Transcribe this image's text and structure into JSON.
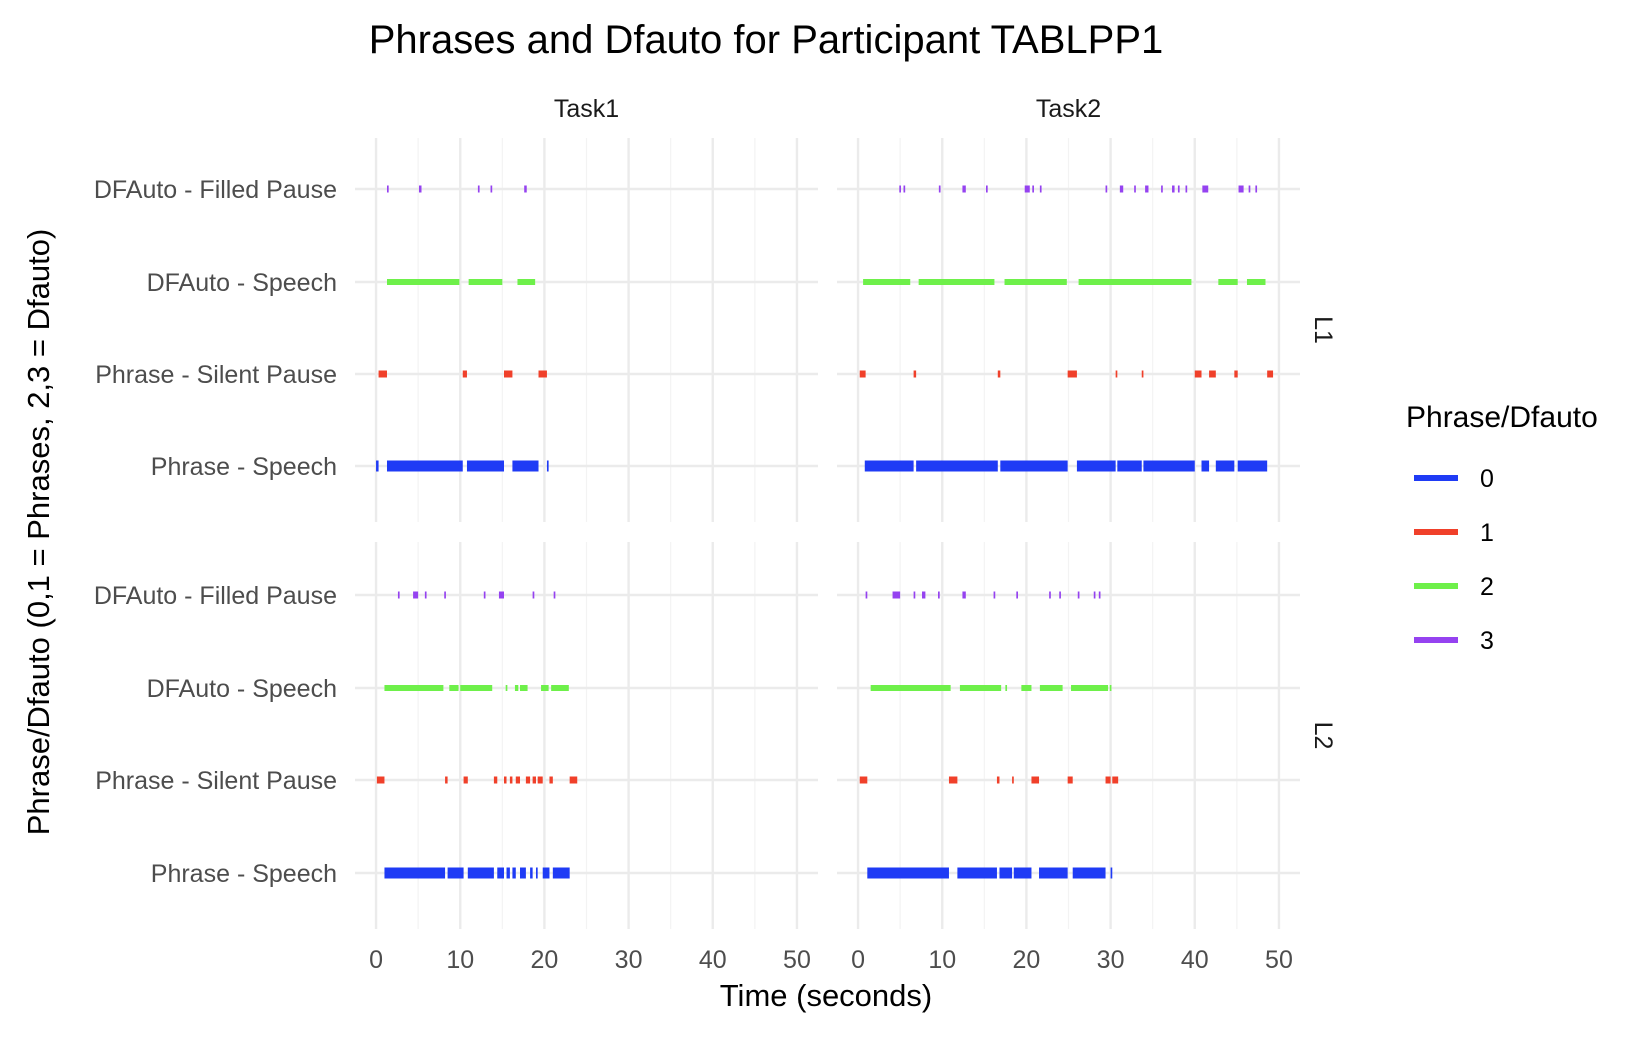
{
  "chart_data": {
    "type": "timeline-segments",
    "title": "Phrases and Dfauto for Participant TABLPP1",
    "xlabel": "Time (seconds)",
    "ylabel": "Phrase/Dfauto (0,1 = Phrases, 2,3 = Dfauto)",
    "xlim": [
      -2.5,
      52.5
    ],
    "x_ticks": [
      0,
      10,
      20,
      30,
      40,
      50
    ],
    "x_tick_labels": [
      "0",
      "10",
      "20",
      "30",
      "40",
      "50"
    ],
    "y_categories": [
      "Phrase - Speech",
      "Phrase - Silent Pause",
      "DFAuto - Speech",
      "DFAuto - Filled Pause"
    ],
    "facet_cols": [
      "Task1",
      "Task2"
    ],
    "facet_rows": [
      "L1",
      "L2"
    ],
    "grid": true,
    "legend": {
      "title": "Phrase/Dfauto",
      "position": "right",
      "entries": [
        {
          "label": "0",
          "color": "#1f3bf5"
        },
        {
          "label": "1",
          "color": "#f0402a"
        },
        {
          "label": "2",
          "color": "#6ef04a"
        },
        {
          "label": "3",
          "color": "#9542f0"
        }
      ]
    },
    "panels": [
      {
        "row": "L1",
        "col": "Task1",
        "segments": [
          {
            "category": "DFAuto - Filled Pause",
            "ranges": [
              [
                1.3,
                1.5
              ],
              [
                5.1,
                5.4
              ],
              [
                12.1,
                12.3
              ],
              [
                13.6,
                13.8
              ],
              [
                17.6,
                17.9
              ]
            ]
          },
          {
            "category": "DFAuto - Speech",
            "ranges": [
              [
                1.3,
                9.9
              ],
              [
                11.0,
                15.0
              ],
              [
                16.8,
                18.9
              ]
            ]
          },
          {
            "category": "Phrase - Silent Pause",
            "ranges": [
              [
                0.3,
                1.3
              ],
              [
                10.3,
                10.8
              ],
              [
                15.2,
                16.2
              ],
              [
                19.3,
                20.3
              ]
            ]
          },
          {
            "category": "Phrase - Speech",
            "ranges": [
              [
                0.0,
                0.3
              ],
              [
                1.3,
                10.3
              ],
              [
                10.8,
                15.2
              ],
              [
                16.2,
                19.3
              ],
              [
                20.3,
                20.5
              ]
            ]
          }
        ]
      },
      {
        "row": "L1",
        "col": "Task2",
        "segments": [
          {
            "category": "DFAuto - Filled Pause",
            "ranges": [
              [
                4.9,
                5.1
              ],
              [
                5.4,
                5.6
              ],
              [
                9.6,
                9.8
              ],
              [
                12.4,
                12.8
              ],
              [
                15.2,
                15.4
              ],
              [
                19.8,
                20.4
              ],
              [
                20.7,
                20.9
              ],
              [
                21.6,
                21.8
              ],
              [
                29.4,
                29.6
              ],
              [
                31.1,
                31.5
              ],
              [
                32.8,
                33.0
              ],
              [
                34.1,
                34.5
              ],
              [
                36.0,
                36.2
              ],
              [
                37.3,
                37.6
              ],
              [
                38.0,
                38.2
              ],
              [
                38.9,
                39.1
              ],
              [
                40.9,
                41.6
              ],
              [
                45.2,
                45.8
              ],
              [
                46.4,
                46.6
              ],
              [
                47.2,
                47.4
              ]
            ]
          },
          {
            "category": "DFAuto - Speech",
            "ranges": [
              [
                0.6,
                6.2
              ],
              [
                7.2,
                16.2
              ],
              [
                17.4,
                24.8
              ],
              [
                26.2,
                39.6
              ],
              [
                42.8,
                45.1
              ],
              [
                46.2,
                48.4
              ]
            ]
          },
          {
            "category": "Phrase - Silent Pause",
            "ranges": [
              [
                0.2,
                0.9
              ],
              [
                6.6,
                6.9
              ],
              [
                16.6,
                16.9
              ],
              [
                24.9,
                26.0
              ],
              [
                30.6,
                30.8
              ],
              [
                33.7,
                33.9
              ],
              [
                40.0,
                40.8
              ],
              [
                41.7,
                42.5
              ],
              [
                44.7,
                45.1
              ],
              [
                48.6,
                49.3
              ]
            ]
          },
          {
            "category": "Phrase - Speech",
            "ranges": [
              [
                0.8,
                6.6
              ],
              [
                6.9,
                16.6
              ],
              [
                16.9,
                24.9
              ],
              [
                26.0,
                30.6
              ],
              [
                30.8,
                33.7
              ],
              [
                33.9,
                40.0
              ],
              [
                40.8,
                41.7
              ],
              [
                42.5,
                44.7
              ],
              [
                45.1,
                48.6
              ]
            ]
          }
        ]
      },
      {
        "row": "L2",
        "col": "Task1",
        "segments": [
          {
            "category": "DFAuto - Filled Pause",
            "ranges": [
              [
                2.6,
                2.8
              ],
              [
                4.4,
                5.0
              ],
              [
                5.8,
                6.0
              ],
              [
                8.1,
                8.3
              ],
              [
                12.8,
                13.0
              ],
              [
                14.6,
                15.2
              ],
              [
                18.6,
                18.8
              ],
              [
                21.1,
                21.3
              ]
            ]
          },
          {
            "category": "DFAuto - Speech",
            "ranges": [
              [
                1.0,
                8.0
              ],
              [
                8.7,
                9.8
              ],
              [
                10.0,
                13.8
              ],
              [
                15.4,
                15.6
              ],
              [
                16.5,
                16.9
              ],
              [
                17.1,
                18.0
              ],
              [
                19.6,
                20.5
              ],
              [
                20.8,
                22.9
              ]
            ]
          },
          {
            "category": "Phrase - Silent Pause",
            "ranges": [
              [
                0.1,
                1.0
              ],
              [
                8.2,
                8.5
              ],
              [
                10.4,
                10.9
              ],
              [
                14.0,
                14.4
              ],
              [
                15.2,
                15.5
              ],
              [
                15.9,
                16.2
              ],
              [
                16.6,
                17.1
              ],
              [
                17.8,
                18.3
              ],
              [
                18.6,
                19.0
              ],
              [
                19.2,
                19.8
              ],
              [
                20.6,
                21.0
              ],
              [
                23.0,
                23.9
              ]
            ]
          },
          {
            "category": "Phrase - Speech",
            "ranges": [
              [
                1.0,
                8.2
              ],
              [
                8.5,
                10.4
              ],
              [
                10.9,
                14.0
              ],
              [
                14.4,
                15.2
              ],
              [
                15.5,
                15.9
              ],
              [
                16.2,
                16.6
              ],
              [
                17.1,
                17.8
              ],
              [
                18.3,
                18.6
              ],
              [
                19.0,
                19.2
              ],
              [
                19.8,
                20.6
              ],
              [
                21.0,
                23.0
              ]
            ]
          }
        ]
      },
      {
        "row": "L2",
        "col": "Task2",
        "segments": [
          {
            "category": "DFAuto - Filled Pause",
            "ranges": [
              [
                0.9,
                1.1
              ],
              [
                4.1,
                5.0
              ],
              [
                6.6,
                6.8
              ],
              [
                7.6,
                8.0
              ],
              [
                9.5,
                9.7
              ],
              [
                12.4,
                12.8
              ],
              [
                16.1,
                16.3
              ],
              [
                18.8,
                19.0
              ],
              [
                22.7,
                22.9
              ],
              [
                23.9,
                24.1
              ],
              [
                26.1,
                26.3
              ],
              [
                28.0,
                28.2
              ],
              [
                28.6,
                28.8
              ]
            ]
          },
          {
            "category": "DFAuto - Speech",
            "ranges": [
              [
                1.5,
                11.0
              ],
              [
                12.1,
                17.0
              ],
              [
                17.5,
                17.7
              ],
              [
                19.4,
                20.6
              ],
              [
                21.6,
                24.3
              ],
              [
                25.3,
                29.7
              ],
              [
                29.9,
                30.1
              ]
            ]
          },
          {
            "category": "Phrase - Silent Pause",
            "ranges": [
              [
                0.2,
                1.1
              ],
              [
                10.8,
                11.8
              ],
              [
                16.5,
                16.8
              ],
              [
                18.3,
                18.5
              ],
              [
                20.6,
                21.5
              ],
              [
                24.9,
                25.5
              ],
              [
                29.4,
                30.0
              ],
              [
                30.2,
                30.9
              ]
            ]
          },
          {
            "category": "Phrase - Speech",
            "ranges": [
              [
                1.1,
                10.8
              ],
              [
                11.8,
                16.5
              ],
              [
                16.8,
                18.3
              ],
              [
                18.5,
                20.6
              ],
              [
                21.5,
                24.9
              ],
              [
                25.5,
                29.4
              ],
              [
                30.0,
                30.2
              ]
            ]
          }
        ]
      }
    ]
  }
}
